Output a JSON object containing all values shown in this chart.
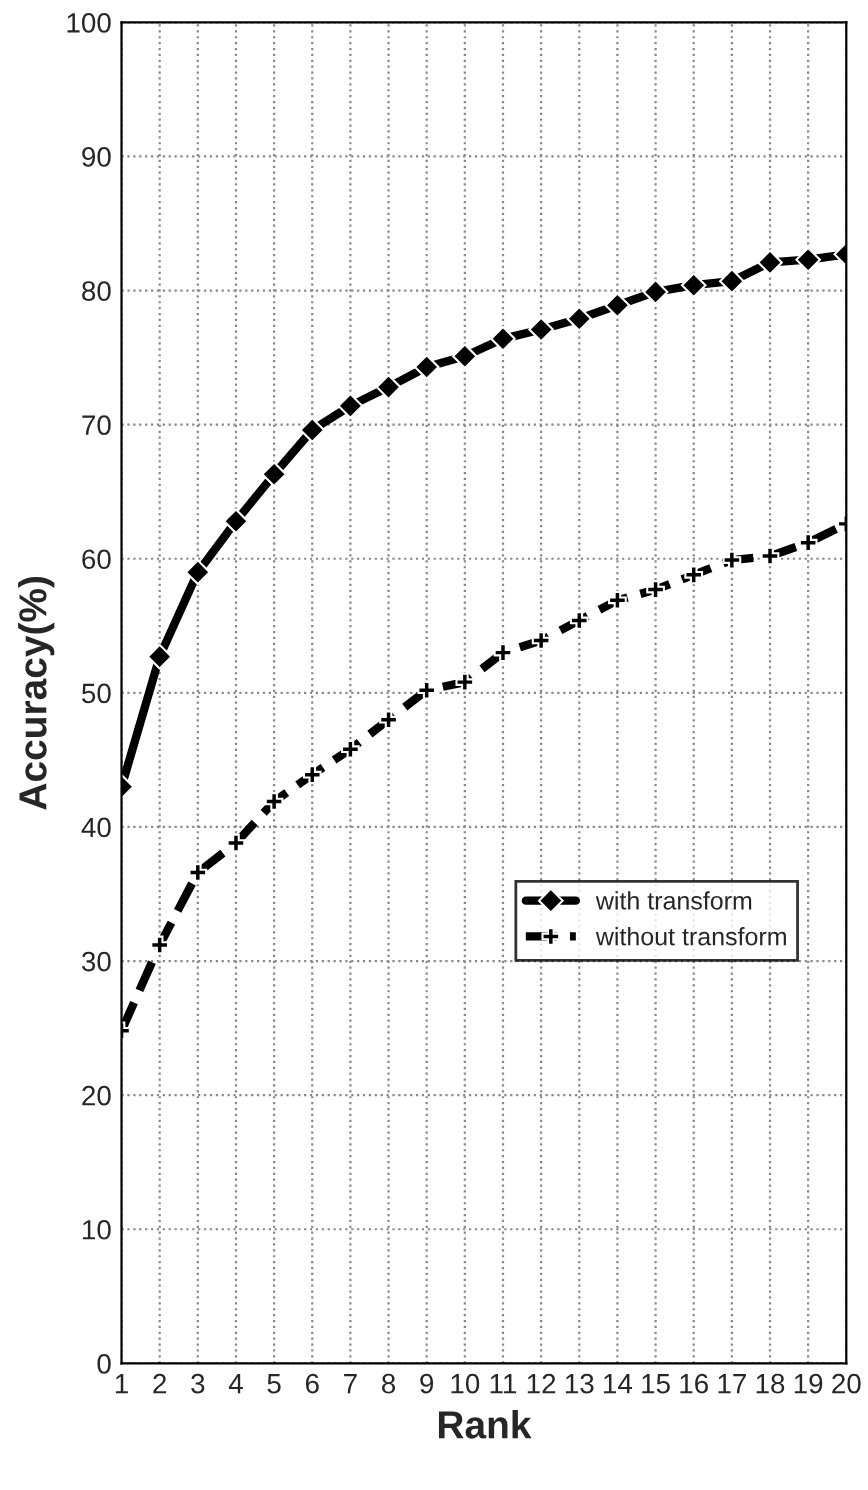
{
  "chart_data": {
    "type": "line",
    "xlabel": "Rank",
    "ylabel": "Accuracy(%)",
    "x": [
      1,
      2,
      3,
      4,
      5,
      6,
      7,
      8,
      9,
      10,
      11,
      12,
      13,
      14,
      15,
      16,
      17,
      18,
      19,
      20
    ],
    "series": [
      {
        "name": "with transform",
        "color": "#000000",
        "marker": "diamond",
        "line_style": "solid",
        "values": [
          43,
          52.7,
          59,
          62.8,
          66.3,
          69.6,
          71.4,
          72.8,
          74.3,
          75.1,
          76.4,
          77.1,
          77.9,
          78.9,
          79.9,
          80.4,
          80.7,
          82.1,
          82.3,
          82.7
        ]
      },
      {
        "name": "without transform",
        "color": "#000000",
        "marker": "cross",
        "line_style": "dashed",
        "values": [
          24.8,
          31.2,
          36.6,
          38.8,
          41.9,
          43.9,
          45.8,
          48,
          50.2,
          50.8,
          53,
          53.9,
          55.4,
          56.9,
          57.7,
          58.8,
          59.9,
          60.2,
          61.2,
          62.6
        ]
      }
    ],
    "xlim": [
      1,
      20
    ],
    "xticks": [
      1,
      2,
      3,
      4,
      5,
      6,
      7,
      8,
      9,
      10,
      11,
      12,
      13,
      14,
      15,
      16,
      17,
      18,
      19,
      20
    ],
    "ylim": [
      0,
      100
    ],
    "yticks": [
      0,
      10,
      20,
      30,
      40,
      50,
      60,
      70,
      80,
      90,
      100
    ],
    "grid": true,
    "legend": "right"
  }
}
